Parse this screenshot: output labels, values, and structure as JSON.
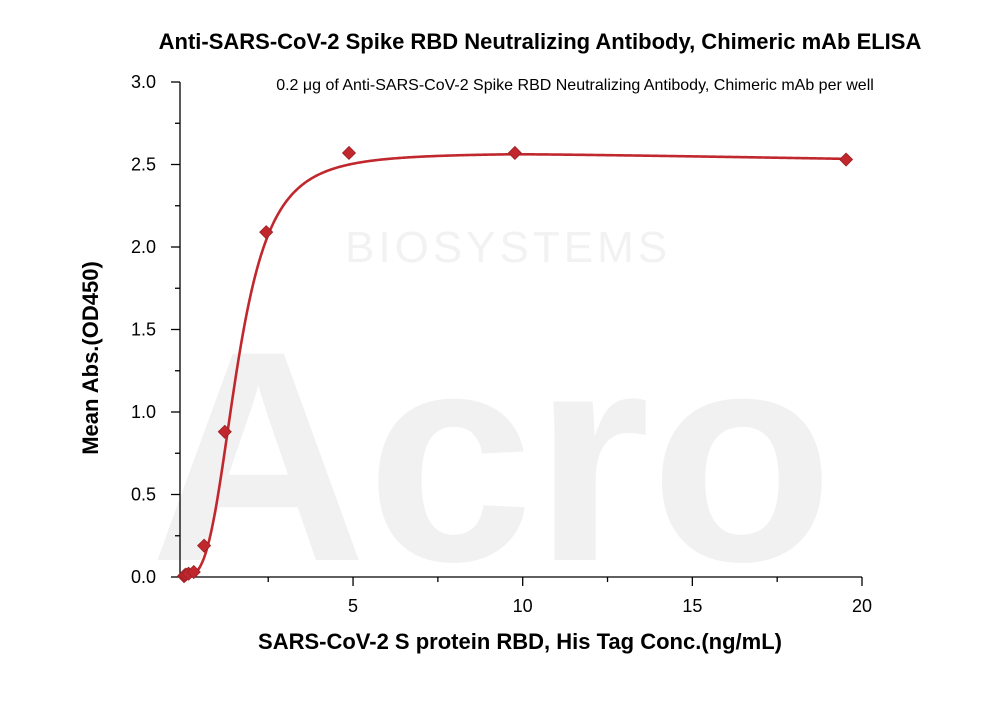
{
  "colors": {
    "series": "#c0282e",
    "watermark": "#f1f1f1",
    "axis": "#000000",
    "background": "#ffffff"
  },
  "watermark": {
    "big": "Acro",
    "small": "BIOSYSTEMS"
  },
  "chart_data": {
    "type": "scatter",
    "title": "Anti-SARS-CoV-2 Spike RBD Neutralizing Antibody, Chimeric mAb ELISA",
    "subtitle": "0.2 μg of Anti-SARS-CoV-2 Spike RBD Neutralizing Antibody, Chimeric mAb per well",
    "xlabel": "SARS-CoV-2 S protein RBD, His Tag Conc.(ng/mL)",
    "ylabel": "Mean Abs.(OD450)",
    "xlim": [
      -0.1,
      20
    ],
    "ylim": [
      0.0,
      3.0
    ],
    "x_ticks": [
      5,
      10,
      15,
      20
    ],
    "x_tick_labels": [
      "5",
      "10",
      "15",
      "20"
    ],
    "y_ticks": [
      0.0,
      0.5,
      1.0,
      1.5,
      2.0,
      2.5,
      3.0
    ],
    "y_tick_labels": [
      "0.0",
      "0.5",
      "1.0",
      "1.5",
      "2.0",
      "2.5",
      "3.0"
    ],
    "grid": false,
    "legend": "none",
    "series": [
      {
        "x": [
          0.019,
          0.038,
          0.076,
          0.153,
          0.305,
          0.61,
          1.22,
          2.44,
          4.88,
          9.77,
          19.53
        ],
        "y": [
          0.005,
          0.01,
          0.015,
          0.02,
          0.03,
          0.19,
          0.88,
          2.09,
          2.57,
          2.57,
          2.53
        ],
        "marker": "diamond",
        "fit": "4PL"
      }
    ]
  }
}
